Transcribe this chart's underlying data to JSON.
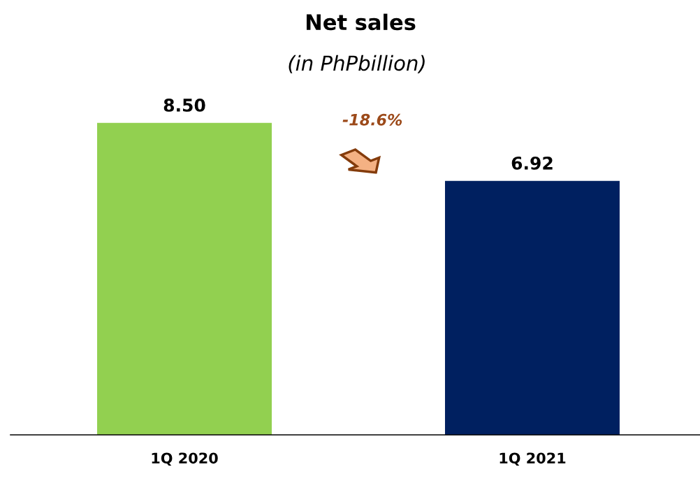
{
  "chart_data": {
    "type": "bar",
    "title": "Net sales",
    "subtitle": "(in PhPbillion)",
    "categories": [
      "1Q 2020",
      "1Q 2021"
    ],
    "values": [
      8.5,
      6.92
    ],
    "colors": [
      "#92d050",
      "#002060"
    ],
    "value_labels": [
      "8.50",
      "6.92"
    ],
    "annotations": [
      "-18.6%"
    ],
    "tick_labels": "x"
  }
}
